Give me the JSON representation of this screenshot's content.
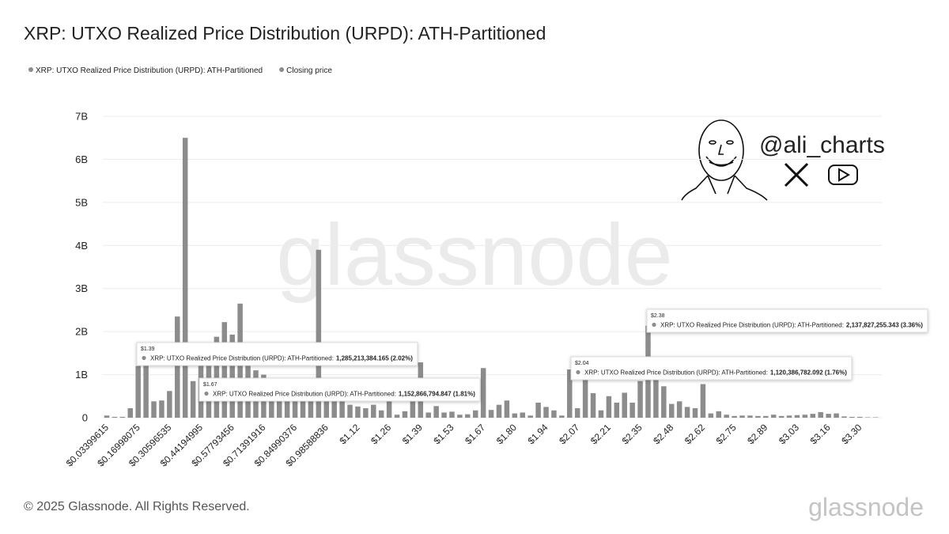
{
  "chart_data": {
    "type": "bar",
    "title": "XRP: UTXO Realized Price Distribution (URPD): ATH-Partitioned",
    "legend": [
      {
        "name": "XRP: UTXO Realized Price Distribution (URPD): ATH-Partitioned",
        "color": "#8c8c8c"
      },
      {
        "name": "Closing price",
        "color": "#8c8c8c"
      }
    ],
    "color": "#8c8c8c",
    "categories": [
      "$0.03399615",
      null,
      null,
      null,
      "$0.16998075",
      null,
      null,
      null,
      "$0.30596535",
      null,
      null,
      null,
      "$0.44194995",
      null,
      null,
      null,
      "$0.57793456",
      null,
      null,
      null,
      "$0.71391916",
      null,
      null,
      null,
      "$0.84990376",
      null,
      null,
      null,
      "$0.98588836",
      null,
      null,
      null,
      "$1.12",
      null,
      null,
      null,
      "$1.26",
      null,
      null,
      null,
      "$1.39",
      null,
      null,
      null,
      "$1.53",
      null,
      null,
      null,
      "$1.67",
      null,
      null,
      null,
      "$1.80",
      null,
      null,
      null,
      "$1.94",
      null,
      null,
      null,
      "$2.07",
      null,
      null,
      null,
      "$2.21",
      null,
      null,
      null,
      "$2.35",
      null,
      null,
      null,
      "$2.48",
      null,
      null,
      null,
      "$2.62",
      null,
      null,
      null,
      "$2.75",
      null,
      null,
      null,
      "$2.89",
      null,
      null,
      null,
      "$3.03",
      null,
      null,
      null,
      "$3.16",
      null,
      null,
      null,
      "$3.30",
      null,
      null
    ],
    "values": [
      50000000,
      20000000,
      20000000,
      220000000,
      1200000000,
      1250000000,
      380000000,
      400000000,
      620000000,
      2350000000,
      6500000000,
      850000000,
      1400000000,
      1500000000,
      1880000000,
      2220000000,
      1930000000,
      2650000000,
      1300000000,
      1100000000,
      1000000000,
      900000000,
      850000000,
      800000000,
      750000000,
      600000000,
      700000000,
      3900000000,
      700000000,
      600000000,
      550000000,
      300000000,
      260000000,
      220000000,
      300000000,
      170000000,
      400000000,
      70000000,
      150000000,
      400000000,
      1285213384.165,
      120000000,
      270000000,
      120000000,
      140000000,
      70000000,
      80000000,
      170000000,
      1152866794.847,
      180000000,
      300000000,
      400000000,
      100000000,
      120000000,
      50000000,
      350000000,
      250000000,
      170000000,
      50000000,
      1120386782.092,
      220000000,
      1050000000,
      570000000,
      170000000,
      500000000,
      350000000,
      580000000,
      350000000,
      850000000,
      2137827255.343,
      1000000000,
      730000000,
      320000000,
      380000000,
      250000000,
      220000000,
      780000000,
      100000000,
      150000000,
      70000000,
      40000000,
      50000000,
      50000000,
      40000000,
      40000000,
      70000000,
      40000000,
      50000000,
      60000000,
      70000000,
      90000000,
      130000000,
      90000000,
      100000000,
      30000000,
      20000000,
      20000000,
      10000000,
      10000000
    ],
    "ylim": [
      0,
      7000000000
    ],
    "yticks": [
      0,
      {
        "value": 1000000000,
        "label": "1B"
      },
      {
        "value": 2000000000,
        "label": "2B"
      },
      {
        "value": 3000000000,
        "label": "3B"
      },
      {
        "value": 4000000000,
        "label": "4B"
      },
      {
        "value": 5000000000,
        "label": "5B"
      },
      {
        "value": 6000000000,
        "label": "6B"
      },
      {
        "value": 7000000000,
        "label": "7B"
      }
    ],
    "grid": true,
    "tooltips": [
      {
        "title": "$1.39",
        "text": "XRP: UTXO Realized Price Distribution (URPD): ATH-Partitioned:",
        "value_label": "1,285,213,384.165 (2.02%)"
      },
      {
        "title": "$1.67",
        "text": "XRP: UTXO Realized Price Distribution (URPD): ATH-Partitioned:",
        "value_label": "1,152,866,794.847 (1.81%)"
      },
      {
        "title": "$2.04",
        "text": "XRP: UTXO Realized Price Distribution (URPD): ATH-Partitioned:",
        "value_label": "1,120,386,782.092 (1.76%)"
      },
      {
        "title": "$2.38",
        "text": "XRP: UTXO Realized Price Distribution (URPD): ATH-Partitioned:",
        "value_label": "2,137,827,255.343 (3.36%)"
      }
    ],
    "watermark": "glassnode",
    "handle": "@ali_charts",
    "footer": "© 2025 Glassnode. All Rights Reserved.",
    "logo": "glassnode"
  }
}
